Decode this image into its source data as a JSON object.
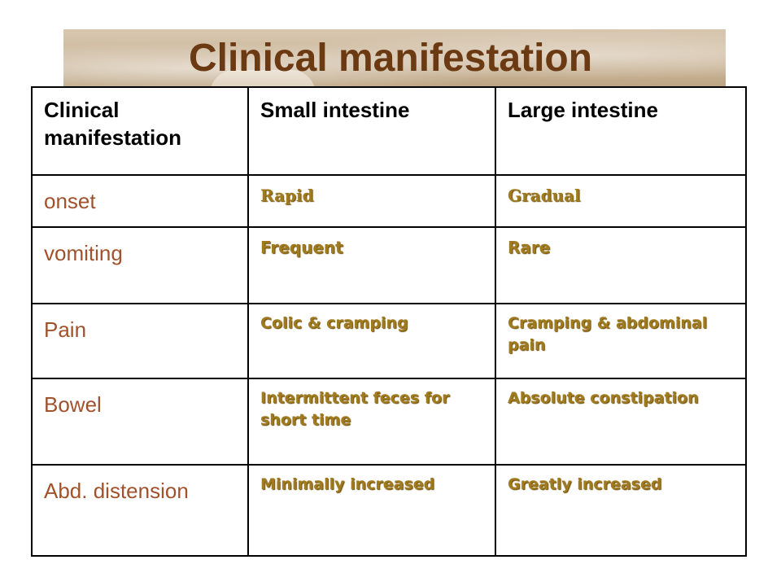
{
  "slide": {
    "title": "Clinical manifestation"
  },
  "table": {
    "headers": [
      "Clinical manifestation",
      "Small intestine",
      "Large intestine"
    ],
    "rows": [
      {
        "label": "onset",
        "small": "Rapid",
        "large": "Gradual"
      },
      {
        "label": "vomiting",
        "small": "Frequent",
        "large": "Rare"
      },
      {
        "label": "Pain",
        "small": "Colic & cramping",
        "large": "Cramping & abdominal pain"
      },
      {
        "label": "Bowel",
        "small": "Intermittent feces for short time",
        "large": "Absolute constipation"
      },
      {
        "label": "Abd. distension",
        "small": "Minimally increased",
        "large": "Greatly increased"
      }
    ]
  },
  "colors": {
    "title": "#6b3a12",
    "row_label": "#a0522d",
    "cell_text": "#a07a1e",
    "border": "#000000"
  }
}
